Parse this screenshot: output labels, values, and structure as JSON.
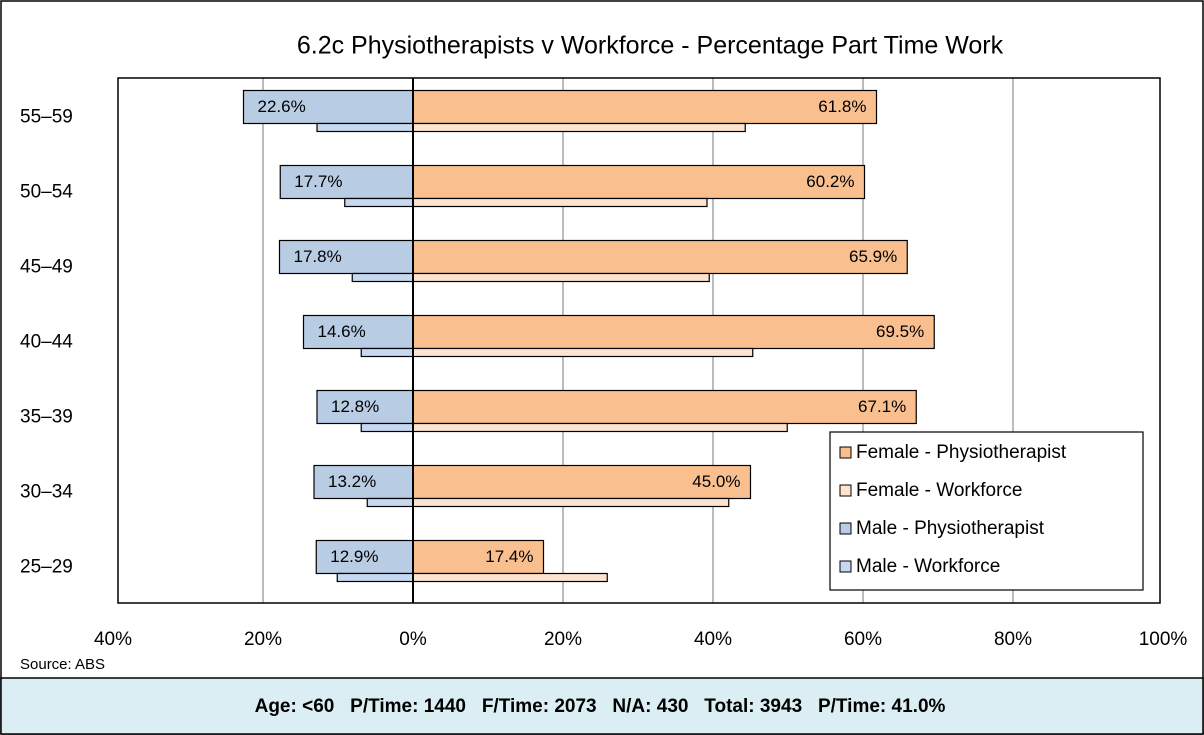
{
  "chart_data": {
    "type": "bar",
    "orientation": "horizontal",
    "title": "6.2c Physiotherapists v Workforce - Percentage Part Time Work",
    "categories": [
      "55–59",
      "50–54",
      "45–49",
      "40–44",
      "35–39",
      "30–34",
      "25–29"
    ],
    "series": [
      {
        "name": "Female - Physiotherapist",
        "color": "#fabf8f",
        "values": [
          61.8,
          60.2,
          65.9,
          69.5,
          67.1,
          45.0,
          17.4
        ],
        "value_labels": [
          "61.8%",
          "60.2%",
          "65.9%",
          "69.5%",
          "67.1%",
          "45.0%",
          "17.4%"
        ]
      },
      {
        "name": "Female - Workforce",
        "color": "#fde4d0",
        "values": [
          44.3,
          39.2,
          39.5,
          45.3,
          49.9,
          42.1,
          25.9
        ]
      },
      {
        "name": "Male - Physiotherapist",
        "color": "#b8cce4",
        "values": [
          -22.6,
          -17.7,
          -17.8,
          -14.6,
          -12.8,
          -13.2,
          -12.9
        ],
        "value_labels": [
          "22.6%",
          "17.7%",
          "17.8%",
          "14.6%",
          "12.8%",
          "13.2%",
          "12.9%"
        ]
      },
      {
        "name": "Male - Workforce",
        "color": "#c6d9f1",
        "values": [
          -12.8,
          -9.1,
          -8.1,
          -6.9,
          -6.9,
          -6.1,
          -10.1
        ]
      }
    ],
    "xlim": [
      -40,
      100
    ],
    "xticks": [
      {
        "value": -40,
        "label": "40%"
      },
      {
        "value": -20,
        "label": "20%"
      },
      {
        "value": 0,
        "label": "0%"
      },
      {
        "value": 20,
        "label": "20%"
      },
      {
        "value": 40,
        "label": "40%"
      },
      {
        "value": 60,
        "label": "60%"
      },
      {
        "value": 80,
        "label": "80%"
      },
      {
        "value": 100,
        "label": "100%"
      }
    ],
    "grid": true,
    "legend": "lower right",
    "source": "Source: ABS",
    "footer": "Age: <60   P/Time: 1440   F/Time: 2073   N/A: 430   Total: 3943   P/Time: 41.0%"
  }
}
